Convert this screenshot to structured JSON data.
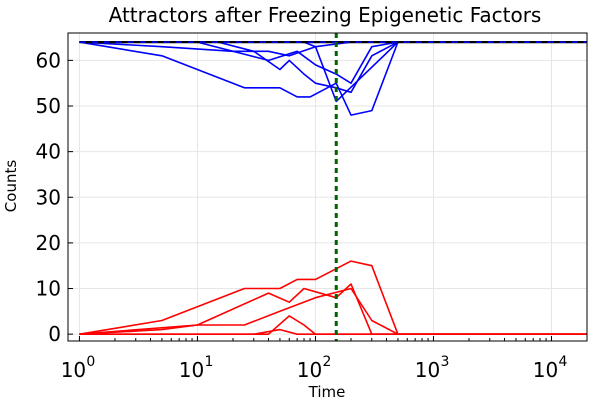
{
  "chart_data": {
    "type": "line",
    "title": "Attractors after Freezing Epigenetic Factors",
    "xlabel": "Time",
    "ylabel": "Counts",
    "xscale": "log10",
    "xlim": [
      0.8,
      20000
    ],
    "ylim": [
      -1.5,
      66
    ],
    "grid": true,
    "legend": "none",
    "x_ticks": [
      {
        "base": "10",
        "exp": "0"
      },
      {
        "base": "10",
        "exp": "1"
      },
      {
        "base": "10",
        "exp": "2"
      },
      {
        "base": "10",
        "exp": "3"
      },
      {
        "base": "10",
        "exp": "4"
      }
    ],
    "y_ticks": [
      "0",
      "10",
      "20",
      "30",
      "40",
      "50",
      "60"
    ],
    "colors": {
      "blue": "#0000ff",
      "red": "#ff0000",
      "black": "#000000",
      "marker": "#006400",
      "grid": "#e6e6e6"
    },
    "marker_line": {
      "x": 150,
      "style": "dashed"
    },
    "series": [
      {
        "color": "blue",
        "x": [
          1,
          5,
          20,
          40,
          60,
          100,
          200,
          500,
          20000
        ],
        "y": [
          64,
          63,
          62,
          62,
          61,
          63,
          64,
          64,
          64
        ]
      },
      {
        "color": "blue",
        "x": [
          1,
          10,
          40,
          70,
          100,
          150,
          200,
          300,
          500,
          20000
        ],
        "y": [
          64,
          64,
          60,
          62,
          59,
          57,
          55,
          63,
          64,
          64
        ]
      },
      {
        "color": "blue",
        "x": [
          1,
          15,
          30,
          50,
          60,
          80,
          100,
          150,
          200,
          300,
          500,
          20000
        ],
        "y": [
          64,
          64,
          62,
          58,
          60,
          57,
          55,
          54,
          53,
          61,
          64,
          64
        ]
      },
      {
        "color": "blue",
        "x": [
          1,
          5,
          25,
          50,
          70,
          90,
          150,
          200,
          300,
          500,
          20000
        ],
        "y": [
          64,
          61,
          54,
          54,
          52,
          52,
          55,
          48,
          49,
          64,
          64
        ]
      },
      {
        "color": "blue",
        "x": [
          1,
          80,
          100,
          150,
          500,
          20000
        ],
        "y": [
          64,
          64,
          63,
          51,
          64,
          64
        ]
      },
      {
        "color": "red",
        "x": [
          1,
          5,
          25,
          50,
          70,
          100,
          200,
          300,
          500,
          20000
        ],
        "y": [
          0,
          3,
          10,
          10,
          12,
          12,
          16,
          15,
          0,
          0
        ]
      },
      {
        "color": "red",
        "x": [
          1,
          10,
          40,
          60,
          80,
          150,
          200,
          300,
          500,
          20000
        ],
        "y": [
          0,
          2,
          9,
          7,
          10,
          8,
          11,
          0,
          0,
          0
        ]
      },
      {
        "color": "red",
        "x": [
          1,
          5,
          10,
          25,
          50,
          100,
          200,
          300,
          500,
          20000
        ],
        "y": [
          0,
          1,
          2,
          2,
          5,
          8,
          10,
          3,
          0,
          0
        ]
      },
      {
        "color": "red",
        "x": [
          1,
          40,
          60,
          80,
          100,
          20000
        ],
        "y": [
          0,
          0,
          4,
          2,
          0,
          0
        ]
      },
      {
        "color": "red",
        "x": [
          1,
          10,
          30,
          50,
          70,
          100,
          20000
        ],
        "y": [
          0,
          0,
          0,
          1,
          0,
          0,
          0
        ]
      },
      {
        "color": "black",
        "style": "dashed",
        "x": [
          1,
          20000
        ],
        "y": [
          64,
          64
        ]
      }
    ]
  }
}
